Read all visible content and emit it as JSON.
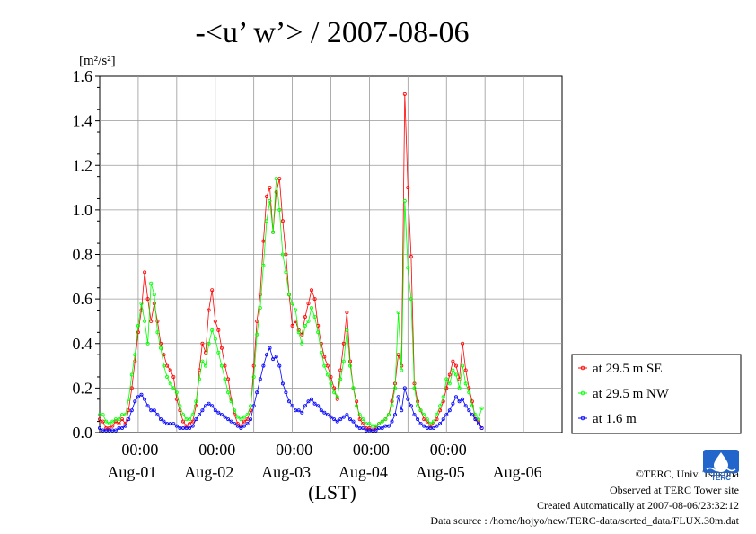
{
  "chart_data": {
    "type": "line",
    "title": "-<u’ w’> / 2007-08-06",
    "unit_label": "[m²/s²]",
    "xlabel": "(LST)",
    "ylim": [
      0,
      1.6
    ],
    "yticks": [
      "0.0",
      "0.2",
      "0.4",
      "0.6",
      "0.8",
      "1.0",
      "1.2",
      "1.4",
      "1.6"
    ],
    "xlim_hours": [
      0,
      144
    ],
    "x_ticks": [
      {
        "hour": 12,
        "label": "00:00"
      },
      {
        "hour": 36,
        "label": "00:00"
      },
      {
        "hour": 60,
        "label": "00:00"
      },
      {
        "hour": 84,
        "label": "00:00"
      },
      {
        "hour": 108,
        "label": "00:00"
      }
    ],
    "day_labels": [
      {
        "hour": 12,
        "label": "Aug-01"
      },
      {
        "hour": 36,
        "label": "Aug-02"
      },
      {
        "hour": 60,
        "label": "Aug-03"
      },
      {
        "hour": 84,
        "label": "Aug-04"
      },
      {
        "hour": 108,
        "label": "Aug-05"
      },
      {
        "hour": 132,
        "label": "Aug-06"
      }
    ],
    "grid": true,
    "legend_position": "right",
    "series": [
      {
        "name": "at 29.5 m SE",
        "color": "#ff0000",
        "step_hours": 1,
        "values": [
          0.06,
          0.05,
          0.02,
          0.02,
          0.03,
          0.05,
          0.04,
          0.06,
          0.04,
          0.1,
          0.2,
          0.32,
          0.45,
          0.55,
          0.72,
          0.6,
          0.5,
          0.58,
          0.5,
          0.4,
          0.35,
          0.3,
          0.28,
          0.25,
          0.15,
          0.1,
          0.05,
          0.03,
          0.04,
          0.05,
          0.12,
          0.28,
          0.4,
          0.36,
          0.55,
          0.64,
          0.5,
          0.46,
          0.38,
          0.3,
          0.24,
          0.15,
          0.08,
          0.04,
          0.03,
          0.05,
          0.06,
          0.1,
          0.3,
          0.5,
          0.62,
          0.86,
          1.06,
          1.1,
          0.9,
          1.08,
          1.14,
          0.95,
          0.8,
          0.62,
          0.48,
          0.5,
          0.46,
          0.44,
          0.52,
          0.58,
          0.64,
          0.6,
          0.48,
          0.4,
          0.34,
          0.3,
          0.25,
          0.2,
          0.15,
          0.28,
          0.4,
          0.54,
          0.32,
          0.2,
          0.14,
          0.06,
          0.04,
          0.02,
          0.02,
          0.01,
          0.02,
          0.04,
          0.05,
          0.06,
          0.08,
          0.14,
          0.22,
          0.35,
          0.3,
          1.52,
          1.1,
          0.79,
          0.22,
          0.14,
          0.1,
          0.06,
          0.05,
          0.03,
          0.04,
          0.06,
          0.1,
          0.14,
          0.2,
          0.26,
          0.32,
          0.3,
          0.24,
          0.4,
          0.28,
          0.2,
          0.14,
          0.06,
          0.05,
          0.02
        ]
      },
      {
        "name": "at 29.5 m NW",
        "color": "#00ff00",
        "step_hours": 1,
        "values": [
          0.08,
          0.08,
          0.05,
          0.04,
          0.05,
          0.06,
          0.06,
          0.08,
          0.08,
          0.15,
          0.26,
          0.35,
          0.48,
          0.58,
          0.5,
          0.4,
          0.67,
          0.62,
          0.45,
          0.38,
          0.3,
          0.25,
          0.22,
          0.2,
          0.18,
          0.12,
          0.08,
          0.06,
          0.06,
          0.08,
          0.14,
          0.24,
          0.32,
          0.3,
          0.4,
          0.46,
          0.42,
          0.36,
          0.3,
          0.24,
          0.18,
          0.14,
          0.1,
          0.07,
          0.06,
          0.07,
          0.08,
          0.12,
          0.25,
          0.44,
          0.56,
          0.75,
          0.95,
          1.04,
          0.9,
          1.14,
          1.0,
          0.8,
          0.72,
          0.62,
          0.58,
          0.55,
          0.45,
          0.4,
          0.48,
          0.5,
          0.56,
          0.52,
          0.45,
          0.36,
          0.3,
          0.26,
          0.22,
          0.18,
          0.16,
          0.24,
          0.32,
          0.46,
          0.3,
          0.2,
          0.12,
          0.08,
          0.06,
          0.04,
          0.04,
          0.03,
          0.03,
          0.04,
          0.05,
          0.06,
          0.08,
          0.12,
          0.2,
          0.54,
          0.28,
          1.04,
          0.74,
          0.6,
          0.2,
          0.12,
          0.1,
          0.08,
          0.06,
          0.04,
          0.05,
          0.08,
          0.12,
          0.16,
          0.24,
          0.22,
          0.28,
          0.26,
          0.2,
          0.3,
          0.22,
          0.18,
          0.12,
          0.08,
          0.06,
          0.11
        ]
      },
      {
        "name": "at 1.6 m",
        "color": "#0000ff",
        "step_hours": 1,
        "values": [
          0.02,
          0.01,
          0.01,
          0.01,
          0.01,
          0.01,
          0.02,
          0.02,
          0.03,
          0.06,
          0.1,
          0.14,
          0.16,
          0.17,
          0.15,
          0.12,
          0.1,
          0.1,
          0.08,
          0.06,
          0.05,
          0.04,
          0.04,
          0.04,
          0.03,
          0.02,
          0.02,
          0.02,
          0.02,
          0.03,
          0.06,
          0.08,
          0.1,
          0.12,
          0.13,
          0.12,
          0.1,
          0.09,
          0.08,
          0.07,
          0.06,
          0.05,
          0.04,
          0.03,
          0.02,
          0.03,
          0.04,
          0.06,
          0.12,
          0.18,
          0.24,
          0.3,
          0.35,
          0.38,
          0.33,
          0.34,
          0.3,
          0.22,
          0.18,
          0.14,
          0.12,
          0.1,
          0.1,
          0.09,
          0.12,
          0.14,
          0.15,
          0.13,
          0.12,
          0.1,
          0.09,
          0.08,
          0.07,
          0.06,
          0.05,
          0.06,
          0.07,
          0.08,
          0.06,
          0.05,
          0.03,
          0.02,
          0.02,
          0.01,
          0.01,
          0.01,
          0.01,
          0.02,
          0.02,
          0.03,
          0.03,
          0.05,
          0.08,
          0.16,
          0.1,
          0.2,
          0.15,
          0.12,
          0.08,
          0.06,
          0.04,
          0.03,
          0.02,
          0.02,
          0.02,
          0.03,
          0.04,
          0.06,
          0.08,
          0.1,
          0.13,
          0.16,
          0.14,
          0.15,
          0.12,
          0.1,
          0.08,
          0.06,
          0.04,
          0.02
        ]
      }
    ]
  },
  "credits": {
    "copyright": "©TERC, Univ. Tsukuba",
    "observed": "Observed at TERC Tower site",
    "created": "Created Automatically at 2007-08-06/23:32:12",
    "source": "Data source : /home/hojyo/new/TERC-data/sorted_data/FLUX.30m.dat"
  },
  "logo": {
    "icon": "terc-logo-icon",
    "text": "TERC",
    "color": "#2266cc"
  }
}
